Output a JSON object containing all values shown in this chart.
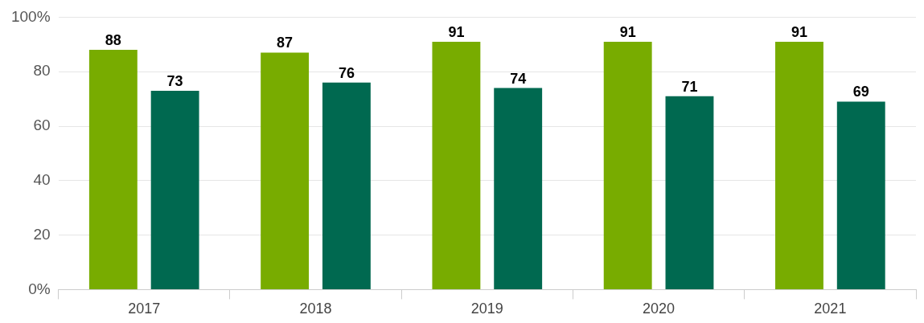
{
  "chart_data": {
    "type": "bar",
    "categories": [
      "2017",
      "2018",
      "2019",
      "2020",
      "2021"
    ],
    "series": [
      {
        "color": "#78ac00",
        "values": [
          88,
          87,
          91,
          91,
          91
        ]
      },
      {
        "color": "#006950",
        "values": [
          73,
          76,
          74,
          71,
          69
        ]
      }
    ],
    "ylim": [
      0,
      100
    ],
    "yticks": [
      {
        "value": 0,
        "label": "0%"
      },
      20,
      40,
      60,
      80,
      {
        "value": 100,
        "label": "100%"
      }
    ],
    "grid": "y",
    "legend": false,
    "data_labels": true
  }
}
